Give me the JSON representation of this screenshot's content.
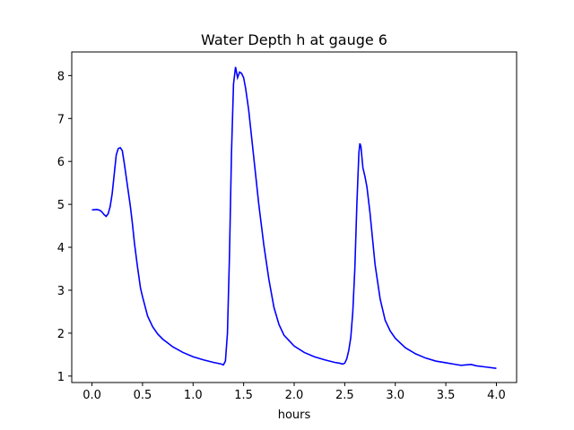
{
  "chart_data": {
    "type": "line",
    "title": "Water Depth h at gauge 6",
    "xlabel": "hours",
    "ylabel": "",
    "xlim": [
      -0.2,
      4.2
    ],
    "ylim": [
      0.85,
      8.55
    ],
    "xticks": [
      0.0,
      0.5,
      1.0,
      1.5,
      2.0,
      2.5,
      3.0,
      3.5,
      4.0
    ],
    "xtick_labels": [
      "0.0",
      "0.5",
      "1.0",
      "1.5",
      "2.0",
      "2.5",
      "3.0",
      "3.5",
      "4.0"
    ],
    "yticks": [
      1,
      2,
      3,
      4,
      5,
      6,
      7,
      8
    ],
    "ytick_labels": [
      "1",
      "2",
      "3",
      "4",
      "5",
      "6",
      "7",
      "8"
    ],
    "grid": false,
    "series": [
      {
        "color": "#0000ff",
        "x": [
          0.0,
          0.05,
          0.08,
          0.1,
          0.12,
          0.14,
          0.16,
          0.18,
          0.2,
          0.22,
          0.24,
          0.26,
          0.28,
          0.3,
          0.32,
          0.35,
          0.38,
          0.4,
          0.42,
          0.45,
          0.48,
          0.5,
          0.55,
          0.6,
          0.65,
          0.7,
          0.8,
          0.9,
          1.0,
          1.1,
          1.2,
          1.28,
          1.3,
          1.32,
          1.34,
          1.36,
          1.38,
          1.4,
          1.42,
          1.44,
          1.46,
          1.48,
          1.5,
          1.52,
          1.55,
          1.6,
          1.65,
          1.7,
          1.75,
          1.8,
          1.85,
          1.9,
          2.0,
          2.1,
          2.2,
          2.3,
          2.4,
          2.45,
          2.48,
          2.5,
          2.52,
          2.54,
          2.56,
          2.58,
          2.6,
          2.62,
          2.64,
          2.65,
          2.66,
          2.68,
          2.7,
          2.72,
          2.75,
          2.8,
          2.85,
          2.9,
          2.95,
          3.0,
          3.1,
          3.2,
          3.3,
          3.4,
          3.5,
          3.6,
          3.65,
          3.7,
          3.75,
          3.8,
          3.9,
          4.0
        ],
        "y": [
          4.87,
          4.88,
          4.86,
          4.82,
          4.76,
          4.72,
          4.78,
          4.95,
          5.25,
          5.7,
          6.15,
          6.3,
          6.32,
          6.25,
          5.95,
          5.45,
          4.95,
          4.55,
          4.1,
          3.55,
          3.05,
          2.85,
          2.4,
          2.15,
          1.98,
          1.86,
          1.68,
          1.55,
          1.45,
          1.38,
          1.32,
          1.28,
          1.26,
          1.35,
          2.0,
          3.8,
          6.2,
          7.8,
          8.2,
          7.95,
          8.08,
          8.05,
          7.95,
          7.7,
          7.2,
          6.1,
          5.0,
          4.05,
          3.25,
          2.6,
          2.2,
          1.95,
          1.7,
          1.55,
          1.45,
          1.38,
          1.32,
          1.3,
          1.28,
          1.3,
          1.4,
          1.6,
          1.9,
          2.5,
          3.5,
          5.0,
          6.2,
          6.42,
          6.35,
          5.85,
          5.65,
          5.4,
          4.8,
          3.6,
          2.8,
          2.3,
          2.05,
          1.88,
          1.66,
          1.52,
          1.42,
          1.35,
          1.31,
          1.27,
          1.25,
          1.26,
          1.27,
          1.24,
          1.21,
          1.18
        ]
      }
    ]
  }
}
